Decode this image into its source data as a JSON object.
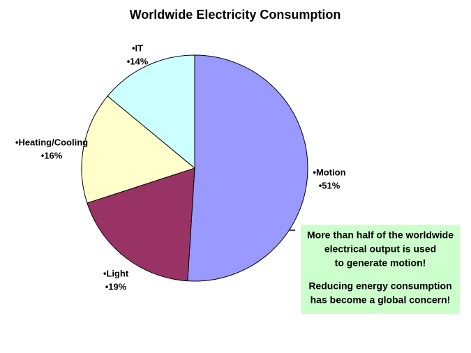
{
  "chart_data": {
    "type": "pie",
    "title": "Worldwide Electricity Consumption",
    "categories": [
      "•Motion",
      "•Light",
      "•Heating/Cooling",
      "•IT"
    ],
    "values": [
      51,
      19,
      16,
      14
    ],
    "value_labels": [
      "•51%",
      "•19%",
      "•16%",
      "•14%"
    ],
    "colors": [
      "#9999ff",
      "#993366",
      "#ffffcc",
      "#ccffff"
    ],
    "annotation": {
      "lines": [
        "More than half of the worldwide",
        "electrical output is used",
        "to generate motion!",
        "Reducing energy consumption",
        "has become a global concern!"
      ]
    }
  }
}
